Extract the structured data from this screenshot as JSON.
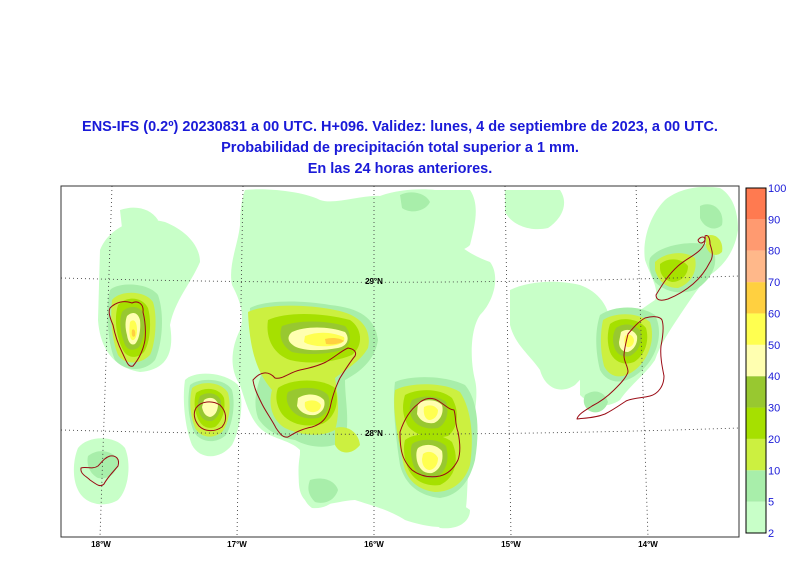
{
  "title": {
    "line1": "ENS-IFS (0.2º) 20230831 a 00 UTC. H+096. Validez: lunes, 4 de septiembre de 2023, a 00 UTC.",
    "line2": "Probabilidad de precipitación total superior a 1 mm.",
    "line3": "En las 24 horas anteriores."
  },
  "axes": {
    "lon_labels": [
      "18°W",
      "17°W",
      "16°W",
      "15°W",
      "14°W"
    ],
    "lat_labels": [
      "29°N",
      "28°N"
    ]
  },
  "colorbar": {
    "levels": [
      "2",
      "5",
      "10",
      "20",
      "30",
      "40",
      "50",
      "60",
      "70",
      "80",
      "90",
      "100"
    ],
    "colors": [
      "#c8ffc8",
      "#a8eeaa",
      "#ccf040",
      "#a6e000",
      "#98c830",
      "#ffffb0",
      "#ffff50",
      "#ffd040",
      "#ffb88a",
      "#ff9a70",
      "#ff7a50"
    ]
  },
  "palette": {
    "p2": "#c8ffc8",
    "p5": "#a8eeaa",
    "p10": "#ccf040",
    "p20": "#a6e000",
    "p30": "#98c830",
    "p40": "#ffffb0",
    "p50": "#ffff50",
    "p60": "#ffd040",
    "coast": "#9a0a14",
    "ocean": "#ffffff",
    "title": "#1a1ad8"
  }
}
